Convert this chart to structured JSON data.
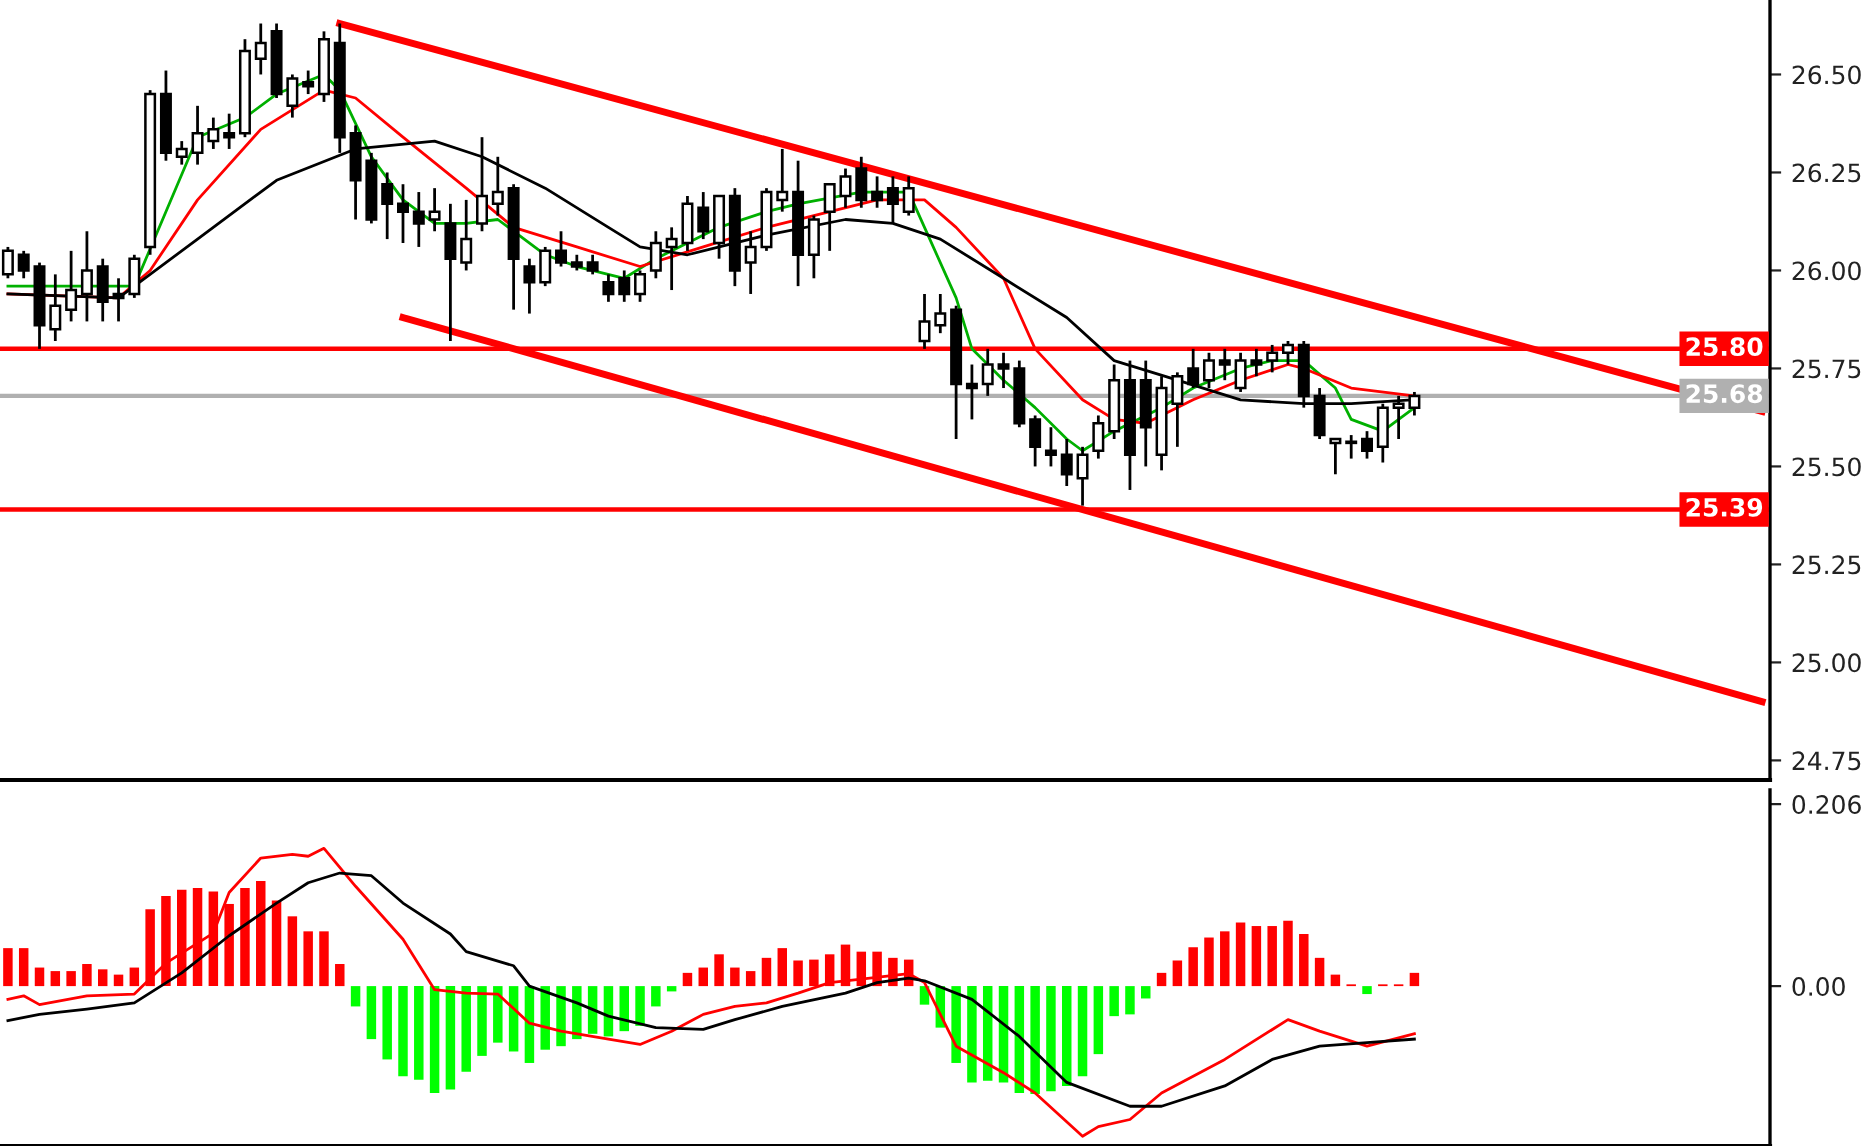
{
  "chart_data": [
    {
      "type": "candlestick",
      "tick_labels": "y",
      "grid": false,
      "categories": [
        null,
        null,
        null,
        null,
        null,
        null,
        null,
        null,
        null,
        null,
        null,
        null,
        null,
        null,
        null,
        null,
        null,
        null,
        null,
        null,
        null,
        null,
        null,
        null,
        null,
        null,
        null,
        null,
        null,
        null,
        null,
        null,
        null,
        null,
        null,
        null,
        null,
        null,
        null,
        null,
        null,
        null,
        null,
        null,
        null,
        null,
        null,
        null,
        null,
        null,
        null,
        null,
        null,
        null,
        null,
        null,
        null,
        null,
        null,
        null,
        null,
        null,
        null,
        null,
        null,
        null,
        null,
        null,
        null,
        null,
        null,
        null,
        null,
        null,
        null,
        null,
        null,
        null,
        null,
        null,
        null,
        null,
        null,
        null,
        null,
        null,
        null,
        null,
        null,
        null,
        null,
        null,
        null,
        null,
        null,
        null,
        null,
        null,
        null,
        null,
        null,
        null,
        null,
        null,
        null,
        null,
        null,
        null,
        null,
        null,
        null,
        null
      ],
      "ohlc": [
        [
          25.99,
          26.06,
          25.98,
          26.05
        ],
        [
          26.04,
          26.05,
          25.98,
          26.0
        ],
        [
          26.01,
          26.02,
          25.8,
          25.86
        ],
        [
          25.85,
          25.99,
          25.82,
          25.91
        ],
        [
          25.9,
          26.05,
          25.87,
          25.95
        ],
        [
          25.94,
          26.1,
          25.87,
          26.0
        ],
        [
          26.01,
          26.03,
          25.87,
          25.92
        ],
        [
          25.94,
          25.98,
          25.87,
          25.93
        ],
        [
          25.94,
          26.04,
          25.93,
          26.03
        ],
        [
          26.06,
          26.46,
          26.04,
          26.45
        ],
        [
          26.45,
          26.51,
          26.28,
          26.3
        ],
        [
          26.29,
          26.33,
          26.27,
          26.31
        ],
        [
          26.3,
          26.42,
          26.27,
          26.35
        ],
        [
          26.33,
          26.39,
          26.31,
          26.36
        ],
        [
          26.35,
          26.4,
          26.31,
          26.34
        ],
        [
          26.35,
          26.59,
          26.34,
          26.56
        ],
        [
          26.54,
          26.63,
          26.5,
          26.58
        ],
        [
          26.61,
          26.63,
          26.44,
          26.45
        ],
        [
          26.42,
          26.5,
          26.39,
          26.49
        ],
        [
          26.48,
          26.51,
          26.45,
          26.47
        ],
        [
          26.45,
          26.61,
          26.43,
          26.59
        ],
        [
          26.58,
          26.63,
          26.3,
          26.34
        ],
        [
          26.35,
          26.37,
          26.13,
          26.23
        ],
        [
          26.28,
          26.3,
          26.12,
          26.13
        ],
        [
          26.22,
          26.25,
          26.08,
          26.17
        ],
        [
          26.17,
          26.22,
          26.07,
          26.15
        ],
        [
          26.15,
          26.2,
          26.06,
          26.12
        ],
        [
          26.13,
          26.21,
          26.1,
          26.15
        ],
        [
          26.12,
          26.17,
          25.82,
          26.03
        ],
        [
          26.02,
          26.18,
          26.0,
          26.08
        ],
        [
          26.12,
          26.34,
          26.1,
          26.19
        ],
        [
          26.17,
          26.29,
          26.14,
          26.2
        ],
        [
          26.21,
          26.22,
          25.9,
          26.03
        ],
        [
          26.01,
          26.03,
          25.89,
          25.97
        ],
        [
          25.97,
          26.06,
          25.96,
          26.05
        ],
        [
          26.05,
          26.1,
          26.01,
          26.02
        ],
        [
          26.02,
          26.04,
          26.0,
          26.01
        ],
        [
          26.02,
          26.04,
          25.99,
          26.0
        ],
        [
          25.97,
          25.99,
          25.92,
          25.94
        ],
        [
          25.98,
          26.0,
          25.92,
          25.94
        ],
        [
          25.94,
          26.0,
          25.92,
          25.99
        ],
        [
          26.0,
          26.1,
          25.98,
          26.07
        ],
        [
          26.06,
          26.11,
          25.95,
          26.08
        ],
        [
          26.07,
          26.19,
          26.05,
          26.17
        ],
        [
          26.16,
          26.2,
          26.08,
          26.1
        ],
        [
          26.07,
          26.19,
          26.03,
          26.19
        ],
        [
          26.19,
          26.21,
          25.96,
          26.0
        ],
        [
          26.02,
          26.1,
          25.94,
          26.06
        ],
        [
          26.06,
          26.21,
          26.05,
          26.2
        ],
        [
          26.18,
          26.31,
          26.15,
          26.2
        ],
        [
          26.2,
          26.28,
          25.96,
          26.04
        ],
        [
          26.04,
          26.14,
          25.98,
          26.13
        ],
        [
          26.15,
          26.22,
          26.05,
          26.22
        ],
        [
          26.19,
          26.26,
          26.16,
          26.24
        ],
        [
          26.26,
          26.29,
          26.16,
          26.18
        ],
        [
          26.2,
          26.24,
          26.16,
          26.18
        ],
        [
          26.21,
          26.24,
          26.12,
          26.17
        ],
        [
          26.15,
          26.24,
          26.14,
          26.21
        ],
        [
          25.82,
          25.94,
          25.8,
          25.87
        ],
        [
          25.86,
          25.94,
          25.84,
          25.89
        ],
        [
          25.9,
          25.91,
          25.57,
          25.71
        ],
        [
          25.71,
          25.76,
          25.62,
          25.7
        ],
        [
          25.71,
          25.8,
          25.68,
          25.76
        ],
        [
          25.76,
          25.79,
          25.7,
          25.75
        ],
        [
          25.75,
          25.77,
          25.6,
          25.61
        ],
        [
          25.62,
          25.63,
          25.5,
          25.55
        ],
        [
          25.54,
          25.6,
          25.5,
          25.53
        ],
        [
          25.53,
          25.57,
          25.45,
          25.48
        ],
        [
          25.47,
          25.55,
          25.4,
          25.53
        ],
        [
          25.54,
          25.63,
          25.52,
          25.61
        ],
        [
          25.59,
          25.76,
          25.57,
          25.72
        ],
        [
          25.72,
          25.77,
          25.44,
          25.53
        ],
        [
          25.72,
          25.77,
          25.5,
          25.6
        ],
        [
          25.53,
          25.73,
          25.49,
          25.7
        ],
        [
          25.66,
          25.74,
          25.55,
          25.73
        ],
        [
          25.75,
          25.8,
          25.7,
          25.71
        ],
        [
          25.72,
          25.79,
          25.7,
          25.77
        ],
        [
          25.77,
          25.8,
          25.72,
          25.76
        ],
        [
          25.7,
          25.79,
          25.69,
          25.77
        ],
        [
          25.77,
          25.8,
          25.73,
          25.76
        ],
        [
          25.77,
          25.81,
          25.74,
          25.79
        ],
        [
          25.79,
          25.82,
          25.76,
          25.81
        ],
        [
          25.81,
          25.82,
          25.65,
          25.68
        ],
        [
          25.68,
          25.7,
          25.57,
          25.58
        ],
        [
          25.56,
          25.57,
          25.48,
          25.57
        ],
        [
          25.56,
          25.58,
          25.52,
          25.56
        ],
        [
          25.57,
          25.59,
          25.52,
          25.54
        ],
        [
          25.55,
          25.66,
          25.51,
          25.65
        ],
        [
          25.65,
          25.68,
          25.57,
          25.66
        ],
        [
          25.65,
          25.69,
          25.63,
          25.68
        ],
        null,
        null,
        null,
        null,
        null,
        null,
        null,
        null,
        null,
        null,
        null,
        null,
        null,
        null,
        null,
        null,
        null,
        null,
        null,
        null,
        null,
        null
      ],
      "series": [
        {
          "type": "line",
          "color": "#00b000",
          "values": [
            25.96,
            null,
            null,
            null,
            null,
            null,
            null,
            null,
            25.96,
            null,
            null,
            null,
            26.34,
            null,
            null,
            26.39,
            null,
            26.45,
            null,
            null,
            26.5,
            26.46,
            null,
            26.29,
            null,
            26.18,
            null,
            26.12,
            null,
            26.12,
            null,
            26.13,
            null,
            null,
            26.04,
            null,
            26.01,
            null,
            null,
            25.98,
            null,
            26.03,
            null,
            null,
            null,
            26.11,
            null,
            null,
            26.15,
            null,
            26.17,
            null,
            null,
            null,
            26.2,
            null,
            null,
            26.2,
            26.11,
            null,
            25.93,
            25.8,
            null,
            25.72,
            null,
            25.65,
            null,
            25.57,
            25.54,
            null,
            25.59,
            null,
            null,
            25.65,
            null,
            25.7,
            null,
            null,
            25.75,
            null,
            25.77,
            null,
            25.77,
            null,
            25.7,
            25.62,
            null,
            25.59,
            null,
            25.65,
            null,
            null,
            null,
            null,
            null,
            null,
            null,
            null,
            null,
            null,
            null,
            null,
            null,
            null,
            null,
            null,
            null,
            null,
            null,
            null,
            null,
            null
          ]
        },
        {
          "type": "line",
          "color": "#ff0000",
          "values": [
            25.94,
            null,
            null,
            null,
            null,
            null,
            null,
            25.93,
            null,
            26.0,
            null,
            null,
            26.18,
            null,
            null,
            null,
            26.36,
            null,
            null,
            null,
            26.46,
            null,
            26.44,
            null,
            null,
            26.34,
            null,
            null,
            null,
            26.21,
            null,
            null,
            26.11,
            null,
            null,
            null,
            26.06,
            null,
            null,
            null,
            26.01,
            null,
            null,
            null,
            26.06,
            null,
            null,
            null,
            26.11,
            null,
            null,
            26.14,
            null,
            null,
            null,
            26.18,
            null,
            null,
            26.18,
            null,
            26.11,
            null,
            null,
            25.98,
            null,
            25.8,
            null,
            null,
            25.67,
            null,
            25.62,
            null,
            25.61,
            null,
            null,
            25.67,
            null,
            null,
            25.72,
            null,
            null,
            25.76,
            25.75,
            null,
            null,
            25.7,
            null,
            null,
            null,
            25.68,
            null,
            null,
            null,
            null,
            null,
            null,
            null,
            null,
            null,
            null,
            null,
            null,
            null,
            null,
            null,
            null,
            null,
            null,
            null,
            null,
            null,
            null
          ]
        },
        {
          "type": "line",
          "color": "#000000",
          "values": [
            25.94,
            null,
            null,
            null,
            null,
            null,
            null,
            25.93,
            null,
            null,
            null,
            null,
            26.08,
            null,
            null,
            null,
            null,
            26.23,
            null,
            null,
            null,
            null,
            26.31,
            null,
            null,
            null,
            null,
            26.33,
            null,
            null,
            26.29,
            null,
            null,
            null,
            26.21,
            null,
            null,
            null,
            26.11,
            null,
            26.06,
            null,
            null,
            26.04,
            null,
            null,
            null,
            null,
            26.09,
            null,
            null,
            null,
            null,
            26.13,
            null,
            null,
            26.12,
            null,
            null,
            26.08,
            null,
            null,
            null,
            25.98,
            null,
            null,
            null,
            25.88,
            null,
            null,
            25.77,
            null,
            null,
            null,
            25.72,
            null,
            null,
            null,
            25.67,
            null,
            null,
            null,
            25.66,
            null,
            null,
            25.66,
            null,
            null,
            null,
            25.67,
            null,
            null,
            null,
            null,
            null,
            null,
            null,
            null,
            null,
            null,
            null,
            null,
            null,
            null,
            null,
            null,
            null,
            null,
            null,
            null,
            null,
            null
          ]
        },
        {
          "type": "line",
          "color": "#ff0000",
          "values": [
            null,
            null,
            null,
            null,
            null,
            null,
            null,
            null,
            null,
            null,
            null,
            null,
            null,
            null,
            null,
            null,
            null,
            null,
            null,
            null,
            null,
            26.63,
            null,
            null,
            null,
            null,
            null,
            null,
            null,
            null,
            null,
            null,
            null,
            null,
            null,
            null,
            null,
            null,
            null,
            null,
            null,
            null,
            null,
            null,
            null,
            null,
            null,
            null,
            null,
            null,
            null,
            null,
            null,
            null,
            null,
            null,
            null,
            null,
            null,
            null,
            null,
            null,
            null,
            null,
            null,
            null,
            null,
            null,
            null,
            null,
            null,
            null,
            null,
            null,
            null,
            null,
            null,
            null,
            null,
            null,
            null,
            null,
            null,
            null,
            null,
            null,
            null,
            null,
            null,
            null,
            null,
            null,
            null,
            null,
            null,
            null,
            null,
            null,
            null,
            null,
            null,
            null,
            null,
            null,
            null,
            null,
            null,
            null,
            null,
            null,
            null,
            25.64
          ]
        },
        {
          "type": "line",
          "color": "#ff0000",
          "values": [
            null,
            null,
            null,
            null,
            null,
            null,
            null,
            null,
            null,
            null,
            null,
            null,
            null,
            null,
            null,
            null,
            null,
            null,
            null,
            null,
            null,
            null,
            null,
            null,
            null,
            25.88,
            null,
            null,
            null,
            null,
            null,
            null,
            null,
            null,
            null,
            null,
            null,
            null,
            null,
            null,
            null,
            null,
            null,
            null,
            null,
            null,
            null,
            null,
            null,
            null,
            null,
            null,
            null,
            null,
            null,
            null,
            null,
            null,
            null,
            null,
            null,
            null,
            null,
            null,
            null,
            null,
            null,
            null,
            null,
            null,
            null,
            null,
            null,
            null,
            null,
            null,
            null,
            null,
            null,
            null,
            null,
            null,
            null,
            null,
            null,
            null,
            null,
            null,
            null,
            null,
            null,
            null,
            null,
            null,
            null,
            null,
            null,
            null,
            null,
            null,
            null,
            null,
            null,
            null,
            null,
            null,
            null,
            null,
            null,
            null,
            null,
            24.9
          ]
        }
      ],
      "ref_lines": [
        {
          "axis": "y",
          "value": 25.8,
          "label": "25.80",
          "color": "#ff0000"
        },
        {
          "axis": "y",
          "value": 25.39,
          "label": "25.39",
          "color": "#ff0000"
        },
        {
          "axis": "y",
          "value": 25.68,
          "label": "25.68",
          "color": "#b0b0b0"
        }
      ],
      "ylim": [
        24.7,
        26.69
      ],
      "yticks": [
        {
          "value": 26.5,
          "label": "26.50"
        },
        {
          "value": 26.25,
          "label": "26.25"
        },
        {
          "value": 26.0,
          "label": "26.00"
        },
        {
          "value": 25.75,
          "label": "25.75"
        },
        {
          "value": 25.5,
          "label": "25.50"
        },
        {
          "value": 25.25,
          "label": "25.25"
        },
        {
          "value": 25.0,
          "label": "25.00"
        },
        {
          "value": 24.75,
          "label": "24.75"
        }
      ]
    },
    {
      "type": "bar",
      "tick_labels": "y",
      "grid": false,
      "categories": [
        null,
        null,
        null,
        null,
        null,
        null,
        null,
        null,
        null,
        null,
        null,
        null,
        null,
        null,
        null,
        null,
        null,
        null,
        null,
        null,
        null,
        null,
        null,
        null,
        null,
        null,
        null,
        null,
        null,
        null,
        null,
        null,
        null,
        null,
        null,
        null,
        null,
        null,
        null,
        null,
        null,
        null,
        null,
        null,
        null,
        null,
        null,
        null,
        null,
        null,
        null,
        null,
        null,
        null,
        null,
        null,
        null,
        null,
        null,
        null,
        null,
        null,
        null,
        null,
        null,
        null,
        null,
        null,
        null,
        null,
        null,
        null,
        null,
        null,
        null,
        null,
        null,
        null,
        null,
        null,
        null,
        null,
        null,
        null,
        null,
        null,
        null,
        null,
        null,
        null,
        null,
        null,
        null,
        null,
        null,
        null,
        null,
        null,
        null,
        null,
        null,
        null,
        null,
        null,
        null,
        null,
        null,
        null,
        null,
        null,
        null,
        null
      ],
      "series": [
        {
          "type": "bar",
          "values": [
            0.043,
            0.043,
            0.021,
            0.017,
            0.017,
            0.025,
            0.019,
            0.013,
            0.021,
            0.087,
            0.102,
            0.109,
            0.111,
            0.107,
            0.093,
            0.111,
            0.119,
            0.097,
            0.079,
            0.062,
            0.062,
            0.025,
            -0.023,
            -0.06,
            -0.083,
            -0.102,
            -0.106,
            -0.121,
            -0.117,
            -0.097,
            -0.079,
            -0.064,
            -0.074,
            -0.087,
            -0.072,
            -0.068,
            -0.06,
            -0.054,
            -0.057,
            -0.051,
            -0.045,
            -0.023,
            -0.006,
            0.015,
            0.021,
            0.036,
            0.021,
            0.017,
            0.032,
            0.043,
            0.029,
            0.03,
            0.036,
            0.047,
            0.039,
            0.039,
            0.032,
            0.03,
            -0.021,
            -0.047,
            -0.087,
            -0.109,
            -0.107,
            -0.109,
            -0.121,
            -0.122,
            -0.119,
            -0.113,
            -0.102,
            -0.077,
            -0.034,
            -0.032,
            -0.014,
            0.015,
            0.029,
            0.044,
            0.055,
            0.062,
            0.072,
            0.068,
            0.068,
            0.074,
            0.059,
            0.032,
            0.013,
            0.002,
            -0.009,
            0.002,
            0.002,
            0.015,
            null,
            null,
            null,
            null,
            null,
            null,
            null,
            null,
            null,
            null,
            null,
            null,
            null,
            null,
            null,
            null,
            null,
            null,
            null,
            null,
            null,
            null
          ],
          "colors": [
            "#ff0000",
            "#ff0000",
            "#ff0000",
            "#ff0000",
            "#ff0000",
            "#ff0000",
            "#ff0000",
            "#ff0000",
            "#ff0000",
            "#ff0000",
            "#ff0000",
            "#ff0000",
            "#ff0000",
            "#ff0000",
            "#ff0000",
            "#ff0000",
            "#ff0000",
            "#ff0000",
            "#ff0000",
            "#ff0000",
            "#ff0000",
            "#ff0000",
            "#00ff00",
            "#00ff00",
            "#00ff00",
            "#00ff00",
            "#00ff00",
            "#00ff00",
            "#00ff00",
            "#00ff00",
            "#00ff00",
            "#00ff00",
            "#00ff00",
            "#00ff00",
            "#00ff00",
            "#00ff00",
            "#00ff00",
            "#00ff00",
            "#00ff00",
            "#00ff00",
            "#00ff00",
            "#00ff00",
            "#00ff00",
            "#ff0000",
            "#ff0000",
            "#ff0000",
            "#ff0000",
            "#ff0000",
            "#ff0000",
            "#ff0000",
            "#ff0000",
            "#ff0000",
            "#ff0000",
            "#ff0000",
            "#ff0000",
            "#ff0000",
            "#ff0000",
            "#ff0000",
            "#00ff00",
            "#00ff00",
            "#00ff00",
            "#00ff00",
            "#00ff00",
            "#00ff00",
            "#00ff00",
            "#00ff00",
            "#00ff00",
            "#00ff00",
            "#00ff00",
            "#00ff00",
            "#00ff00",
            "#00ff00",
            "#00ff00",
            "#ff0000",
            "#ff0000",
            "#ff0000",
            "#ff0000",
            "#ff0000",
            "#ff0000",
            "#ff0000",
            "#ff0000",
            "#ff0000",
            "#ff0000",
            "#ff0000",
            "#ff0000",
            "#ff0000",
            "#00ff00",
            "#ff0000",
            "#ff0000",
            "#ff0000",
            null,
            null,
            null,
            null,
            null,
            null,
            null,
            null,
            null,
            null,
            null,
            null,
            null,
            null,
            null,
            null,
            null,
            null,
            null,
            null,
            null,
            null
          ]
        },
        {
          "type": "line",
          "color": "#ff0000",
          "values": [
            -0.015,
            -0.011,
            -0.021,
            null,
            null,
            -0.011,
            null,
            null,
            -0.009,
            null,
            0.026,
            null,
            null,
            0.06,
            0.106,
            null,
            0.145,
            null,
            0.149,
            0.147,
            0.156,
            null,
            0.113,
            null,
            null,
            0.053,
            null,
            -0.004,
            null,
            -0.008,
            null,
            -0.009,
            null,
            -0.042,
            null,
            -0.051,
            null,
            null,
            -0.06,
            null,
            -0.066,
            null,
            -0.051,
            null,
            -0.032,
            null,
            -0.023,
            null,
            -0.019,
            null,
            -0.008,
            null,
            0.004,
            null,
            0.008,
            null,
            null,
            0.014,
            0.004,
            null,
            -0.068,
            null,
            null,
            -0.098,
            null,
            -0.121,
            null,
            null,
            -0.17,
            -0.159,
            null,
            -0.151,
            null,
            -0.121,
            null,
            null,
            null,
            -0.083,
            null,
            null,
            null,
            -0.038,
            null,
            -0.051,
            null,
            null,
            -0.068,
            null,
            null,
            -0.054,
            null,
            null,
            null,
            null,
            null,
            null,
            null,
            null,
            null,
            null,
            null,
            null,
            null,
            null,
            null,
            null,
            null,
            null,
            null,
            null,
            null,
            null
          ]
        },
        {
          "type": "line",
          "color": "#000000",
          "values": [
            -0.039,
            null,
            -0.032,
            null,
            null,
            -0.026,
            null,
            null,
            -0.019,
            null,
            null,
            0.015,
            null,
            null,
            0.057,
            null,
            null,
            0.094,
            null,
            0.117,
            null,
            0.128,
            null,
            0.125,
            null,
            0.094,
            null,
            null,
            0.059,
            0.039,
            null,
            null,
            0.023,
            0.0,
            null,
            null,
            -0.019,
            null,
            -0.034,
            null,
            null,
            -0.047,
            null,
            null,
            -0.049,
            null,
            -0.038,
            null,
            null,
            -0.023,
            null,
            null,
            null,
            -0.008,
            null,
            0.004,
            null,
            0.009,
            0.006,
            null,
            null,
            -0.015,
            null,
            null,
            -0.057,
            null,
            null,
            -0.109,
            null,
            null,
            null,
            -0.136,
            null,
            -0.136,
            null,
            null,
            null,
            -0.113,
            null,
            null,
            -0.083,
            null,
            null,
            -0.068,
            null,
            null,
            -0.064,
            null,
            null,
            -0.06,
            null,
            null,
            null,
            null,
            null,
            null,
            null,
            null,
            null,
            null,
            null,
            null,
            null,
            null,
            null,
            null,
            null,
            null,
            null,
            null,
            null,
            null
          ]
        }
      ],
      "ylim": [
        -0.181,
        0.222
      ],
      "yticks": [
        {
          "value": 0.206,
          "label": "0.206"
        },
        {
          "value": 0,
          "label": "0.00"
        }
      ]
    }
  ]
}
